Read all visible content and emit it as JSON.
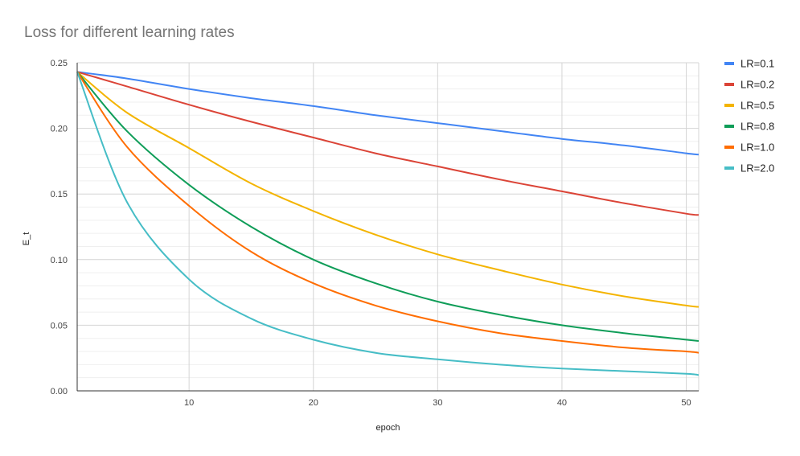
{
  "chart_data": {
    "type": "line",
    "title": "Loss for different learning rates",
    "xlabel": "epoch",
    "ylabel": "E_t",
    "xlim": [
      1,
      51
    ],
    "ylim": [
      0,
      0.25
    ],
    "x_ticks": [
      10,
      20,
      30,
      40,
      50
    ],
    "y_ticks": [
      0,
      0.05,
      0.1,
      0.15,
      0.2,
      0.25
    ],
    "y_tick_labels": [
      "0.00",
      "0.05",
      "0.10",
      "0.15",
      "0.20",
      "0.25"
    ],
    "grid": true,
    "legend_position": "right",
    "x": [
      1,
      5,
      10,
      15,
      20,
      25,
      30,
      35,
      40,
      45,
      50,
      51
    ],
    "series": [
      {
        "name": "LR=0.1",
        "color": "#4285F4",
        "values": [
          0.243,
          0.238,
          0.23,
          0.223,
          0.217,
          0.21,
          0.204,
          0.198,
          0.192,
          0.187,
          0.181,
          0.18
        ]
      },
      {
        "name": "LR=0.2",
        "color": "#DB4437",
        "values": [
          0.243,
          0.232,
          0.218,
          0.205,
          0.193,
          0.181,
          0.171,
          0.161,
          0.152,
          0.143,
          0.135,
          0.134
        ]
      },
      {
        "name": "LR=0.5",
        "color": "#F4B400",
        "values": [
          0.243,
          0.212,
          0.185,
          0.158,
          0.137,
          0.119,
          0.104,
          0.092,
          0.081,
          0.072,
          0.065,
          0.064
        ]
      },
      {
        "name": "LR=0.8",
        "color": "#0F9D58",
        "values": [
          0.243,
          0.198,
          0.157,
          0.125,
          0.1,
          0.082,
          0.068,
          0.058,
          0.05,
          0.044,
          0.039,
          0.038
        ]
      },
      {
        "name": "LR=1.0",
        "color": "#FF6D00",
        "values": [
          0.243,
          0.186,
          0.141,
          0.106,
          0.082,
          0.065,
          0.053,
          0.044,
          0.038,
          0.033,
          0.03,
          0.029
        ]
      },
      {
        "name": "LR=2.0",
        "color": "#46BDC6",
        "values": [
          0.243,
          0.144,
          0.085,
          0.055,
          0.039,
          0.029,
          0.024,
          0.02,
          0.017,
          0.015,
          0.013,
          0.012
        ]
      }
    ]
  }
}
